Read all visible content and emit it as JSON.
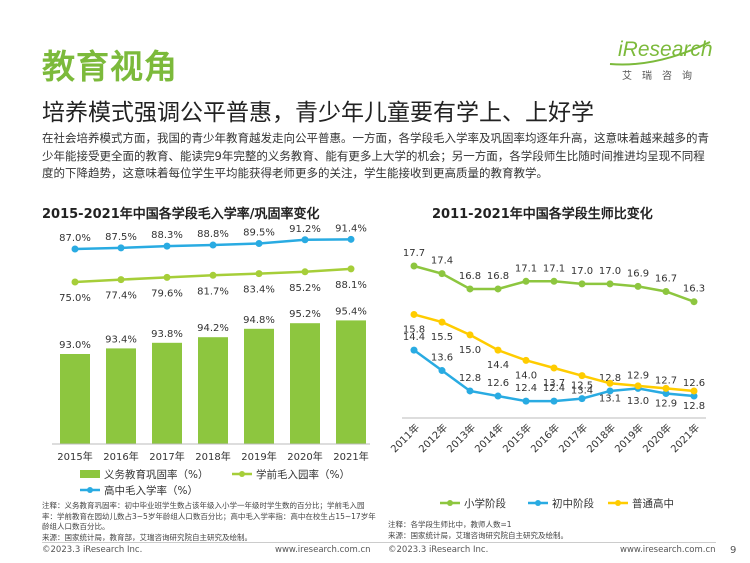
{
  "header": {
    "section_title": "教育视角",
    "headline": "培养模式强调公平普惠，青少年儿童要有学上、上好学",
    "intro": "在社会培养模式方面，我国的青少年教育越发走向公平普惠。一方面，各学段毛入学率及巩固率均逐年升高，这意味着越来越多的青少年能接受更全面的教育、能读完9年完整的义务教育、能有更多上大学的机会；另一方面，各学段师生比随时间推进均呈现不同程度的下降趋势，这意味着每位学生平均能获得老师更多的关注，学生能接收到更高质量的教育教学。"
  },
  "logo": {
    "brand": "iResearch",
    "subtitle": "艾瑞咨询"
  },
  "chart_data": [
    {
      "type": "bar",
      "title": "2015-2021年中国各学段毛入学率/巩固率变化",
      "categories": [
        "2015年",
        "2016年",
        "2017年",
        "2018年",
        "2019年",
        "2020年",
        "2021年"
      ],
      "series": [
        {
          "name": "义务教育巩固率（%）",
          "type": "bar",
          "color": "#8dc63f",
          "values": [
            93.0,
            93.4,
            93.8,
            94.2,
            94.8,
            95.2,
            95.4
          ],
          "labels": [
            "93.0%",
            "93.4%",
            "93.8%",
            "94.2%",
            "94.8%",
            "95.2%",
            "95.4%"
          ]
        },
        {
          "name": "学前毛入园率（%）",
          "type": "line",
          "color": "#a6ce39",
          "values": [
            75.0,
            77.4,
            79.6,
            81.7,
            83.4,
            85.2,
            88.1
          ],
          "labels": [
            "75.0%",
            "77.4%",
            "79.6%",
            "81.7%",
            "83.4%",
            "85.2%",
            "88.1%"
          ]
        },
        {
          "name": "高中毛入学率（%）",
          "type": "line",
          "color": "#29abe2",
          "values": [
            87.0,
            87.5,
            88.3,
            88.8,
            89.5,
            91.2,
            91.4
          ],
          "labels": [
            "87.0%",
            "87.5%",
            "88.3%",
            "88.8%",
            "89.5%",
            "91.2%",
            "91.4%"
          ]
        }
      ],
      "notes": "注释：义务教育巩固率：初中毕业班学生数占该年级入小学一年级时学生数的百分比；学前毛入园率：学前教育在园幼儿数占3~5岁年龄组人口数百分比；高中毛入学率指：高中在校生占15~17岁年龄组人口数百分比。",
      "source": "来源：国家统计局，教育部，艾瑞咨询研究院自主研究及绘制。",
      "grid": false,
      "legend_position": "bottom"
    },
    {
      "type": "line",
      "title": "2011-2021年中国各学段生师比变化",
      "categories": [
        "2011年",
        "2012年",
        "2013年",
        "2014年",
        "2015年",
        "2016年",
        "2017年",
        "2018年",
        "2019年",
        "2020年",
        "2021年"
      ],
      "series": [
        {
          "name": "小学阶段",
          "color": "#8dc63f",
          "values": [
            17.7,
            17.4,
            16.8,
            16.8,
            17.1,
            17.1,
            17.0,
            17.0,
            16.9,
            16.7,
            16.3
          ]
        },
        {
          "name": "初中阶段",
          "color": "#29abe2",
          "values": [
            14.4,
            13.6,
            12.8,
            12.6,
            12.4,
            12.4,
            12.5,
            12.8,
            12.9,
            12.7,
            12.6
          ]
        },
        {
          "name": "普通高中",
          "color": "#ffcc00",
          "values": [
            15.8,
            15.5,
            15.0,
            14.4,
            14.0,
            13.7,
            13.4,
            13.1,
            13.0,
            12.9,
            12.8
          ]
        }
      ],
      "notes": "注释：各学段生师比中，教师人数=1",
      "source": "来源：国家统计局，艾瑞咨询研究院自主研究及绘制。",
      "grid": false,
      "legend_position": "bottom"
    }
  ],
  "footer": {
    "left_copyright": "©2023.3 iResearch Inc.",
    "left_url": "www.iresearch.com.cn",
    "right_copyright": "©2023.3 iResearch Inc.",
    "right_url": "www.iresearch.com.cn",
    "page_number": "9"
  }
}
